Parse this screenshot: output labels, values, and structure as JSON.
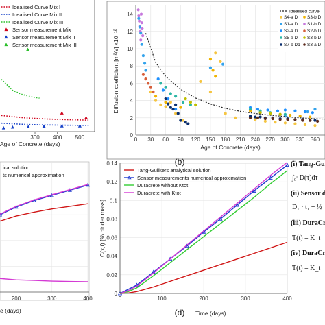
{
  "colors": {
    "ideal": "#d0021b",
    "mix2": "#1540c8",
    "mix3": "#2bbf2b",
    "red": "#d01616",
    "blue": "#1f3ad0",
    "green": "#33cc33",
    "magenta": "#d43ad4",
    "bdash": "#222222",
    "s4a": "#f5c542",
    "s3a": "#f0b400",
    "s1a": "#34a3ec",
    "s1b": "#c678dd",
    "s2a": "#1e90ff",
    "s2b": "#d75f3a",
    "s5a": "#2bb5a5",
    "s3b": "#bfbf00",
    "s7b": "#0a2e6e",
    "s3a2": "#5c2b1e"
  },
  "chart_data": [
    {
      "id": "a",
      "type": "line",
      "xlabel": "Age of Concrete (days)",
      "xticks": [
        300,
        400,
        500
      ],
      "x_domain": [
        150,
        560
      ],
      "y_domain": [
        0,
        14
      ],
      "legend": [
        {
          "label": "Idealised Curve Mix I",
          "color": "#d0021b",
          "style": "dotted"
        },
        {
          "label": "Idealised Curve Mix II",
          "color": "#1540c8",
          "style": "dotted"
        },
        {
          "label": "Idealised Curve Mix III",
          "color": "#2bbf2b",
          "style": "dotted"
        },
        {
          "label": "Sensor measurement Mix I",
          "color": "#d0021b",
          "style": "triangle"
        },
        {
          "label": "Sensor measurement Mix II",
          "color": "#1540c8",
          "style": "triangle"
        },
        {
          "label": "Sensor measurement Mix III",
          "color": "#2bbf2b",
          "style": "triangle"
        }
      ],
      "series": [
        {
          "color": "#2bbf2b",
          "kind": "curve",
          "x": [
            150,
            200,
            240,
            280,
            320
          ],
          "y": [
            6.5,
            5.1,
            4.6,
            4.3,
            4.1
          ]
        },
        {
          "color": "#d0021b",
          "kind": "curve",
          "x": [
            150,
            250,
            350,
            450,
            540
          ],
          "y": [
            1.9,
            1.6,
            1.45,
            1.35,
            1.3
          ]
        },
        {
          "color": "#1540c8",
          "kind": "curve",
          "x": [
            150,
            250,
            350,
            450,
            540
          ],
          "y": [
            0.9,
            0.75,
            0.68,
            0.64,
            0.62
          ]
        },
        {
          "color": "#2bbf2b",
          "kind": "points",
          "x": [
            268
          ],
          "y": [
            10.3
          ]
        },
        {
          "color": "#d0021b",
          "kind": "points",
          "x": [
            420,
            528
          ],
          "y": [
            2.2,
            1.6
          ]
        },
        {
          "color": "#1540c8",
          "kind": "points",
          "x": [
            160,
            200,
            270,
            340,
            420,
            500
          ],
          "y": [
            0.3,
            0.4,
            0.45,
            0.5,
            0.55,
            0.55
          ]
        }
      ]
    },
    {
      "id": "b",
      "type": "scatter",
      "panel_label": "(b)",
      "xlabel": "Age of Concrete (days)",
      "ylabel": "Diffusion coefficient [m²/s] x10⁻¹²",
      "xticks": [
        0,
        30,
        60,
        90,
        120,
        150,
        180,
        210,
        240,
        270,
        300,
        330,
        360
      ],
      "yticks": [
        0,
        2,
        4,
        6,
        8,
        10,
        12,
        14
      ],
      "xlim": [
        0,
        380
      ],
      "ylim": [
        0,
        15
      ],
      "legend": [
        {
          "label": "Idealised curve",
          "color": "#222222",
          "style": "dashed"
        },
        {
          "label": "S4-a D",
          "color": "#f5c542",
          "style": "dot"
        },
        {
          "label": "S3-b D",
          "color": "#f0b400",
          "style": "dot"
        },
        {
          "label": "S1-a D",
          "color": "#34a3ec",
          "style": "dot"
        },
        {
          "label": "S1-b D",
          "color": "#c678dd",
          "style": "dot"
        },
        {
          "label": "S2-a D",
          "color": "#1e90ff",
          "style": "dot"
        },
        {
          "label": "S2-b D",
          "color": "#d75f3a",
          "style": "dot"
        },
        {
          "label": "S5-a D",
          "color": "#2bb5a5",
          "style": "dot"
        },
        {
          "label": "S3-b D",
          "color": "#bfbf00",
          "style": "dot"
        },
        {
          "label": "S7-b D1",
          "color": "#0a2e6e",
          "style": "dot"
        },
        {
          "label": "S3-a D",
          "color": "#5c2b1e",
          "style": "dot"
        }
      ],
      "ideal_curve": {
        "x": [
          20,
          40,
          60,
          90,
          120,
          150,
          180,
          210,
          240,
          270,
          300,
          330,
          360,
          380
        ],
        "y": [
          11.8,
          8.4,
          6.8,
          5.3,
          4.3,
          3.6,
          3.1,
          2.75,
          2.5,
          2.3,
          2.15,
          2.0,
          1.9,
          1.85
        ]
      },
      "series": [
        {
          "color": "#c678dd",
          "x": [
            5,
            6,
            7,
            8,
            9,
            10,
            11,
            12,
            13,
            14
          ],
          "y": [
            14.5,
            13.8,
            13.2,
            12.6,
            12.0,
            11.0,
            14.0,
            13.0,
            12.3,
            11.5
          ]
        },
        {
          "color": "#34a3ec",
          "x": [
            6,
            8,
            10,
            12,
            15,
            18,
            20,
            150,
            175,
            300,
            345,
            360
          ],
          "y": [
            13.5,
            12.5,
            11.8,
            10.5,
            9.2,
            8.3,
            7.5,
            7.8,
            8.2,
            2.2,
            2.7,
            3.0
          ]
        },
        {
          "color": "#f5c542",
          "x": [
            30,
            40,
            50,
            60,
            70,
            80,
            95,
            100,
            130,
            150,
            160,
            170,
            180,
            200,
            240,
            260,
            280,
            300,
            320,
            340,
            360
          ],
          "y": [
            5.0,
            4.0,
            3.5,
            3.3,
            3.8,
            2.5,
            1.7,
            1.5,
            6.2,
            5.0,
            9.5,
            8.5,
            2.5,
            2.0,
            1.8,
            1.6,
            1.5,
            1.4,
            1.3,
            1.2,
            1.1
          ]
        },
        {
          "color": "#f0b400",
          "x": [
            40,
            60,
            90,
            150,
            155,
            160,
            230,
            250,
            270,
            290,
            310,
            330,
            350
          ],
          "y": [
            4.5,
            3.8,
            3.2,
            8.8,
            7.5,
            6.8,
            2.8,
            2.6,
            2.5,
            2.4,
            2.3,
            2.2,
            2.1
          ]
        },
        {
          "color": "#1e90ff",
          "x": [
            45,
            55,
            65,
            80,
            230,
            245,
            265,
            285,
            300,
            320,
            340,
            355
          ],
          "y": [
            6.5,
            5.2,
            4.2,
            3.0,
            3.2,
            3.0,
            2.9,
            2.8,
            2.9,
            2.8,
            2.7,
            2.6
          ]
        },
        {
          "color": "#d75f3a",
          "x": [
            15,
            20,
            25,
            30,
            35
          ],
          "y": [
            7.0,
            6.5,
            6.0,
            5.5,
            5.0
          ]
        },
        {
          "color": "#2bb5a5",
          "x": [
            50,
            60,
            70,
            80,
            95,
            110,
            230,
            250,
            270,
            300
          ],
          "y": [
            6.0,
            5.5,
            4.8,
            4.5,
            3.8,
            3.5,
            3.0,
            2.8,
            2.6,
            2.4
          ]
        },
        {
          "color": "#bfbf00",
          "x": [
            100,
            110,
            120,
            250,
            270,
            290
          ],
          "y": [
            4.2,
            3.8,
            3.5,
            2.6,
            2.5,
            2.4
          ]
        },
        {
          "color": "#0a2e6e",
          "x": [
            60,
            65,
            70,
            75,
            80,
            85,
            90,
            100,
            105,
            230,
            240,
            250,
            260,
            275,
            290,
            305,
            320,
            335,
            350,
            360
          ],
          "y": [
            4.2,
            3.6,
            3.2,
            3.0,
            3.5,
            2.5,
            1.7,
            1.5,
            1.3,
            2.2,
            2.1,
            2.1,
            2.0,
            2.0,
            1.9,
            1.9,
            1.8,
            1.8,
            1.7,
            1.7
          ]
        },
        {
          "color": "#5c2b1e",
          "x": [
            230,
            245,
            260,
            275,
            290,
            305,
            320,
            335,
            350,
            365
          ],
          "y": [
            2.0,
            2.0,
            1.9,
            1.9,
            1.8,
            1.8,
            1.8,
            1.7,
            1.7,
            1.6
          ]
        }
      ]
    },
    {
      "id": "c",
      "type": "line",
      "xlabel": "e (days)",
      "xticks": [
        200,
        300,
        400
      ],
      "x_domain": [
        155,
        400
      ],
      "y_domain": [
        0,
        10
      ],
      "legend": [
        {
          "label": "ical solution",
          "color": "#d01616",
          "style": "line"
        },
        {
          "label": "ts numerical approximation",
          "color": "#1f3ad0",
          "style": "triangle"
        }
      ],
      "series": [
        {
          "color": "#d01616",
          "kind": "line",
          "x": [
            155,
            200,
            250,
            300,
            350,
            400
          ],
          "y": [
            5.5,
            5.9,
            6.2,
            6.45,
            6.65,
            6.85
          ]
        },
        {
          "color": "#1f3ad0",
          "kind": "tri",
          "x": [
            155,
            200,
            250,
            300,
            350,
            400
          ],
          "y": [
            6.0,
            6.6,
            7.1,
            7.5,
            7.9,
            8.3
          ]
        },
        {
          "color": "#d43ad4",
          "kind": "line",
          "x": [
            155,
            200,
            250,
            300,
            350,
            400
          ],
          "y": [
            6.05,
            6.65,
            7.15,
            7.55,
            7.95,
            8.35
          ]
        },
        {
          "color": "#d43ad4",
          "kind": "line",
          "x": [
            155,
            200,
            250,
            300,
            350,
            400
          ],
          "y": [
            1.05,
            0.95,
            0.9,
            0.85,
            0.82,
            0.8
          ]
        }
      ]
    },
    {
      "id": "d",
      "type": "line",
      "panel_label": "(d)",
      "xlabel": "Time (days)",
      "ylabel": "C(x,t) [% binder mass]",
      "xticks": [
        0,
        100,
        200,
        300,
        400
      ],
      "yticks": [
        0,
        0.02,
        0.04,
        0.06,
        0.08,
        0.1,
        0.12,
        0.14
      ],
      "xlim": [
        0,
        400
      ],
      "ylim": [
        0,
        0.14
      ],
      "legend": [
        {
          "label": "Tang-Gulikers analytical solution",
          "color": "#d01616",
          "style": "line"
        },
        {
          "label": "Sensor measurements numerical approximation",
          "color": "#1f3ad0",
          "style": "triangle"
        },
        {
          "label": "Duracrete without Ktot",
          "color": "#33cc33",
          "style": "line"
        },
        {
          "label": "Duracrete with Ktot",
          "color": "#d43ad4",
          "style": "line"
        }
      ],
      "series": [
        {
          "name": "Tang-Gulikers analytical solution",
          "color": "#d01616",
          "kind": "line",
          "x": [
            0,
            20,
            40,
            80,
            120,
            160,
            200,
            240,
            280,
            320,
            360,
            400
          ],
          "y": [
            0,
            0.0005,
            0.002,
            0.007,
            0.013,
            0.019,
            0.025,
            0.031,
            0.037,
            0.043,
            0.049,
            0.055
          ]
        },
        {
          "name": "Sensor measurements numerical approximation",
          "color": "#1f3ad0",
          "kind": "tri",
          "x": [
            0,
            40,
            80,
            120,
            160,
            200,
            240,
            280,
            320,
            360,
            400
          ],
          "y": [
            0,
            0.009,
            0.023,
            0.037,
            0.051,
            0.066,
            0.08,
            0.095,
            0.11,
            0.124,
            0.138
          ]
        },
        {
          "name": "Duracrete without Ktot",
          "color": "#33cc33",
          "kind": "line",
          "x": [
            0,
            20,
            40,
            80,
            120,
            160,
            200,
            240,
            280,
            320,
            360,
            400
          ],
          "y": [
            0,
            0.002,
            0.006,
            0.019,
            0.033,
            0.047,
            0.061,
            0.075,
            0.089,
            0.103,
            0.118,
            0.132
          ]
        },
        {
          "name": "Duracrete with Ktot",
          "color": "#d43ad4",
          "kind": "line",
          "x": [
            0,
            20,
            40,
            80,
            120,
            160,
            200,
            240,
            280,
            320,
            360,
            400
          ],
          "y": [
            0,
            0.003,
            0.008,
            0.022,
            0.037,
            0.052,
            0.067,
            0.082,
            0.097,
            0.112,
            0.127,
            0.141
          ]
        }
      ]
    }
  ],
  "equations": [
    {
      "label": "(i) Tang-Guli",
      "expr": "∫₀ᵗ D(τ)dτ"
    },
    {
      "label": "(ii) Sensor d",
      "expr": "D₁ · t₁ + ½"
    },
    {
      "label": "(iii) DuraCr",
      "expr": "T(t) = K_t"
    },
    {
      "label": "(iv) DuraCr",
      "expr": "T(t) = K_t"
    }
  ]
}
